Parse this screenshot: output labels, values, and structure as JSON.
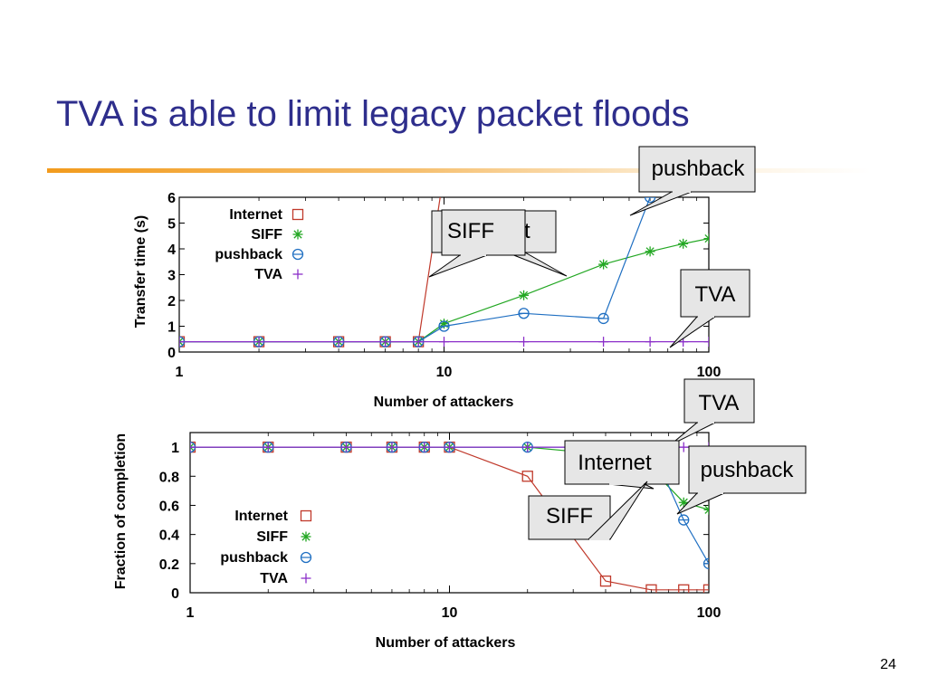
{
  "slide": {
    "title": "TVA is able to limit legacy packet floods",
    "page_number": "24"
  },
  "colors": {
    "title": "#2e2e8c",
    "accent_rule": "#f29b1d",
    "Internet": "#c0392b",
    "SIFF": "#22a722",
    "pushback": "#1f6fc2",
    "TVA": "#8b2fc9",
    "callout_fill": "#e6e6e6"
  },
  "chart_data": [
    {
      "type": "line",
      "xscale": "log",
      "xlabel": "Number of attackers",
      "ylabel": "Transfer time (s)",
      "xlim": [
        1,
        100
      ],
      "ylim": [
        0,
        6
      ],
      "xticks": [
        "1",
        "10",
        "100"
      ],
      "yticks": [
        "0",
        "1",
        "2",
        "3",
        "4",
        "5",
        "6"
      ],
      "legend_position": "top-left",
      "series": [
        {
          "name": "Internet",
          "marker": "square",
          "x": [
            1,
            2,
            4,
            6,
            8,
            10
          ],
          "y": [
            0.4,
            0.4,
            0.4,
            0.4,
            0.4,
            7
          ]
        },
        {
          "name": "SIFF",
          "marker": "star",
          "x": [
            1,
            2,
            4,
            6,
            8,
            10,
            20,
            40,
            60,
            80,
            100
          ],
          "y": [
            0.4,
            0.4,
            0.4,
            0.4,
            0.4,
            1.1,
            2.2,
            3.4,
            3.9,
            4.2,
            4.4
          ]
        },
        {
          "name": "pushback",
          "marker": "circle",
          "x": [
            1,
            2,
            4,
            6,
            8,
            10,
            20,
            40,
            60,
            70
          ],
          "y": [
            0.4,
            0.4,
            0.4,
            0.4,
            0.4,
            1.0,
            1.5,
            1.3,
            6,
            7
          ]
        },
        {
          "name": "TVA",
          "marker": "plus",
          "x": [
            1,
            2,
            4,
            6,
            8,
            10,
            20,
            40,
            60,
            80,
            100
          ],
          "y": [
            0.4,
            0.4,
            0.4,
            0.4,
            0.4,
            0.4,
            0.4,
            0.4,
            0.4,
            0.4,
            0.4
          ]
        }
      ],
      "callouts": [
        {
          "label": "pushback"
        },
        {
          "label": "Internet"
        },
        {
          "label": "SIFF"
        },
        {
          "label": "TVA"
        }
      ]
    },
    {
      "type": "line",
      "xscale": "log",
      "xlabel": "Number of attackers",
      "ylabel": "Fraction of completion",
      "xlim": [
        1,
        100
      ],
      "ylim": [
        0,
        1.1
      ],
      "xticks": [
        "1",
        "10",
        "100"
      ],
      "yticks": [
        "0",
        "0.2",
        "0.4",
        "0.6",
        "0.8",
        "1"
      ],
      "legend_position": "bottom-left",
      "series": [
        {
          "name": "Internet",
          "marker": "square",
          "x": [
            1,
            2,
            4,
            6,
            8,
            10,
            20,
            40,
            60,
            80,
            100
          ],
          "y": [
            1,
            1,
            1,
            1,
            1,
            1,
            0.8,
            0.08,
            0.02,
            0.02,
            0.02
          ]
        },
        {
          "name": "SIFF",
          "marker": "star",
          "x": [
            1,
            2,
            4,
            6,
            8,
            10,
            20,
            40,
            60,
            80,
            100
          ],
          "y": [
            1,
            1,
            1,
            1,
            1,
            1,
            1,
            0.95,
            0.85,
            0.62,
            0.57
          ]
        },
        {
          "name": "pushback",
          "marker": "circle",
          "x": [
            1,
            2,
            4,
            6,
            8,
            10,
            20,
            40,
            60,
            80,
            100
          ],
          "y": [
            1,
            1,
            1,
            1,
            1,
            1,
            1,
            1,
            1,
            0.5,
            0.2
          ]
        },
        {
          "name": "TVA",
          "marker": "plus",
          "x": [
            1,
            2,
            4,
            6,
            8,
            10,
            20,
            40,
            60,
            80,
            100
          ],
          "y": [
            1,
            1,
            1,
            1,
            1,
            1,
            1,
            1,
            1,
            1,
            1
          ]
        }
      ],
      "callouts": [
        {
          "label": "TVA"
        },
        {
          "label": "Internet"
        },
        {
          "label": "pushback"
        },
        {
          "label": "SIFF"
        }
      ]
    }
  ]
}
